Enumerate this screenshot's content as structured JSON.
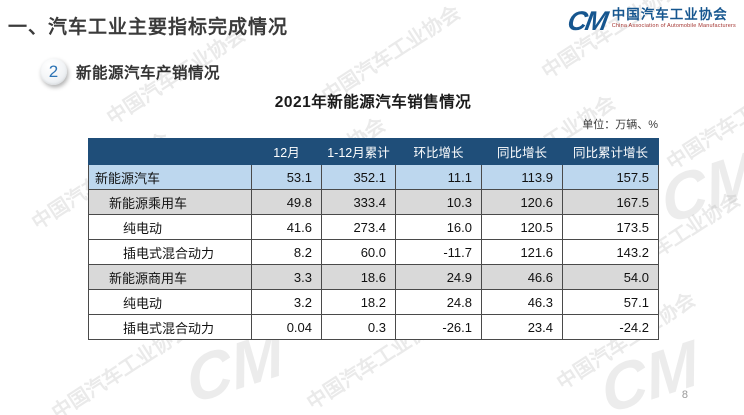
{
  "page": {
    "title": "一、汽车工业主要指标完成情况",
    "page_number": "8"
  },
  "logo": {
    "mark": "CM",
    "name_cn": "中国汽车工业协会",
    "name_en": "China Association of Automobile Manufacturers"
  },
  "section": {
    "number": "2",
    "label": "新能源汽车产销情况"
  },
  "table": {
    "title": "2021年新能源汽车销售情况",
    "unit_note": "单位：万辆、%",
    "columns": [
      "",
      "12月",
      "1-12月累计",
      "环比增长",
      "同比增长",
      "同比累计增长"
    ],
    "rows": [
      {
        "label": "新能源汽车",
        "indent": 0,
        "style": "highlight-blue",
        "values": [
          "53.1",
          "352.1",
          "11.1",
          "113.9",
          "157.5"
        ]
      },
      {
        "label": "新能源乘用车",
        "indent": 1,
        "style": "highlight-gray",
        "values": [
          "49.8",
          "333.4",
          "10.3",
          "120.6",
          "167.5"
        ]
      },
      {
        "label": "纯电动",
        "indent": 2,
        "style": "plain",
        "values": [
          "41.6",
          "273.4",
          "16.0",
          "120.5",
          "173.5"
        ]
      },
      {
        "label": "插电式混合动力",
        "indent": 2,
        "style": "plain",
        "values": [
          "8.2",
          "60.0",
          "-11.7",
          "121.6",
          "143.2"
        ]
      },
      {
        "label": "新能源商用车",
        "indent": 1,
        "style": "highlight-gray",
        "values": [
          "3.3",
          "18.6",
          "24.9",
          "46.6",
          "54.0"
        ]
      },
      {
        "label": "纯电动",
        "indent": 2,
        "style": "plain",
        "values": [
          "3.2",
          "18.2",
          "24.8",
          "46.3",
          "57.1"
        ]
      },
      {
        "label": "插电式混合动力",
        "indent": 2,
        "style": "plain",
        "values": [
          "0.04",
          "0.3",
          "-26.1",
          "23.4",
          "-24.2"
        ]
      }
    ]
  },
  "chart_data": {
    "type": "table",
    "title": "2021年新能源汽车销售情况",
    "unit": "万辆、%",
    "columns": [
      "12月",
      "1-12月累计",
      "环比增长",
      "同比增长",
      "同比累计增长"
    ],
    "rows": [
      {
        "name": "新能源汽车",
        "values": [
          53.1,
          352.1,
          11.1,
          113.9,
          157.5
        ]
      },
      {
        "name": "新能源乘用车",
        "values": [
          49.8,
          333.4,
          10.3,
          120.6,
          167.5
        ]
      },
      {
        "name": "纯电动(乘用车)",
        "values": [
          41.6,
          273.4,
          16.0,
          120.5,
          173.5
        ]
      },
      {
        "name": "插电式混合动力(乘用车)",
        "values": [
          8.2,
          60.0,
          -11.7,
          121.6,
          143.2
        ]
      },
      {
        "name": "新能源商用车",
        "values": [
          3.3,
          18.6,
          24.9,
          46.6,
          54.0
        ]
      },
      {
        "name": "纯电动(商用车)",
        "values": [
          3.2,
          18.2,
          24.8,
          46.3,
          57.1
        ]
      },
      {
        "name": "插电式混合动力(商用车)",
        "values": [
          0.04,
          0.3,
          -26.1,
          23.4,
          -24.2
        ]
      }
    ]
  },
  "watermark": {
    "text": "中国汽车工业协会",
    "mark": "CM"
  },
  "colors": {
    "header_bg": "#1F4E79",
    "row_blue": "#BDD7EE",
    "row_gray": "#D9D9D9",
    "logo_blue": "#16568F",
    "badge_blue": "#2E74B5"
  }
}
